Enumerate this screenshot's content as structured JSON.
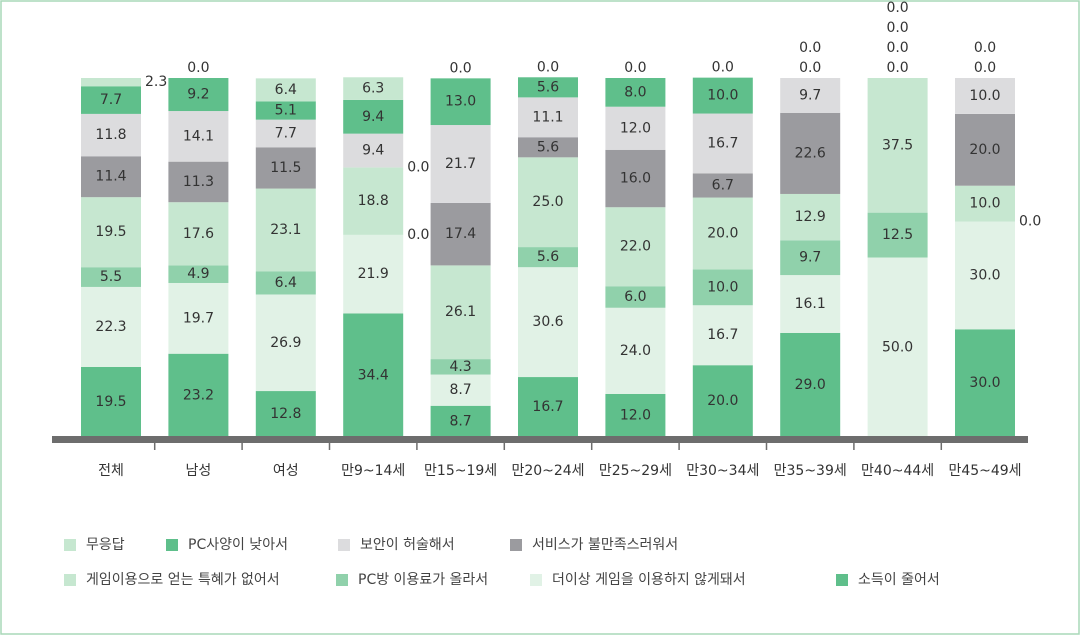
{
  "chart_data": {
    "type": "stacked_bar",
    "categories": [
      "전체",
      "남성",
      "여성",
      "만9~14세",
      "만15~19세",
      "만20~24세",
      "만25~29세",
      "만30~34세",
      "만35~39세",
      "만40~44세",
      "만45~49세"
    ],
    "series": [
      {
        "name": "소득이 줄어서",
        "color": "#5fbf8b",
        "values": [
          19.5,
          23.2,
          12.8,
          34.4,
          8.7,
          16.7,
          12.0,
          20.0,
          29.0,
          0.0,
          30.0
        ],
        "value_labels": [
          "19.5",
          "23.2",
          "12.8",
          "34.4",
          "8.7",
          "16.7",
          "12.0",
          "20.0",
          "29.0",
          "0.0",
          "30.0"
        ]
      },
      {
        "name": "더이상 게임을 이용하지 않게돼서",
        "color": "#e1f2e6",
        "values": [
          22.3,
          19.7,
          26.9,
          21.9,
          8.7,
          30.6,
          24.0,
          16.7,
          16.1,
          50.0,
          30.0
        ],
        "value_labels": [
          "22.3",
          "19.7",
          "26.9",
          "21.9",
          "8.7",
          "30.6",
          "24.0",
          "16.7",
          "16.1",
          "50.0",
          "30.0"
        ]
      },
      {
        "name": "PC방 이용료가 올라서",
        "color": "#90d1ab",
        "values": [
          5.5,
          4.9,
          6.4,
          0.0,
          4.3,
          5.6,
          6.0,
          10.0,
          9.7,
          12.5,
          0.0
        ],
        "value_labels": [
          "5.5",
          "4.9",
          "6.4",
          "0.0",
          "4.3",
          "5.6",
          "6.0",
          "10.0",
          "9.7",
          "12.5",
          "0.0"
        ]
      },
      {
        "name": "게임이용으로 얻는 특혜가 없어서",
        "color": "#c6e7d0",
        "values": [
          19.5,
          17.6,
          23.1,
          18.8,
          26.1,
          25.0,
          22.0,
          20.0,
          12.9,
          37.5,
          10.0
        ],
        "value_labels": [
          "19.5",
          "17.6",
          "23.1",
          "18.8",
          "26.1",
          "25.0",
          "22.0",
          "20.0",
          "12.9",
          "37.5",
          "10.0"
        ]
      },
      {
        "name": "서비스가 불만족스러워서",
        "color": "#9b9b9f",
        "values": [
          11.4,
          11.3,
          11.5,
          0.0,
          17.4,
          5.6,
          16.0,
          6.7,
          22.6,
          0.0,
          20.0
        ],
        "value_labels": [
          "11.4",
          "11.3",
          "11.5",
          "0.0",
          "17.4",
          "5.6",
          "16.0",
          "6.7",
          "22.6",
          "0.0",
          "20.0"
        ]
      },
      {
        "name": "보안이 허술해서",
        "color": "#dcdcde",
        "values": [
          11.8,
          14.1,
          7.7,
          9.4,
          21.7,
          11.1,
          12.0,
          16.7,
          9.7,
          0.0,
          10.0
        ],
        "value_labels": [
          "11.8",
          "14.1",
          "7.7",
          "9.4",
          "21.7",
          "11.1",
          "12.0",
          "16.7",
          "9.7",
          "0.0",
          "10.0"
        ]
      },
      {
        "name": "PC사양이 낮아서",
        "color": "#5fbf8b",
        "values": [
          7.7,
          9.2,
          5.1,
          9.4,
          13.0,
          5.6,
          8.0,
          10.0,
          0.0,
          0.0,
          0.0
        ],
        "value_labels": [
          "7.7",
          "9.2",
          "5.1",
          "9.4",
          "13.0",
          "5.6",
          "8.0",
          "10.0",
          "0.0",
          "0.0",
          "0.0"
        ]
      },
      {
        "name": "무응답",
        "color": "#c6e7d0",
        "values": [
          2.3,
          0.0,
          6.4,
          6.3,
          0.0,
          0.0,
          0.0,
          0.0,
          0.0,
          0.0,
          0.0
        ],
        "value_labels": [
          "2.3",
          "0.0",
          "6.4",
          "6.3",
          "0.0",
          "0.0",
          "0.0",
          "0.0",
          "0.0",
          "0.0",
          "0.0"
        ]
      }
    ]
  }
}
